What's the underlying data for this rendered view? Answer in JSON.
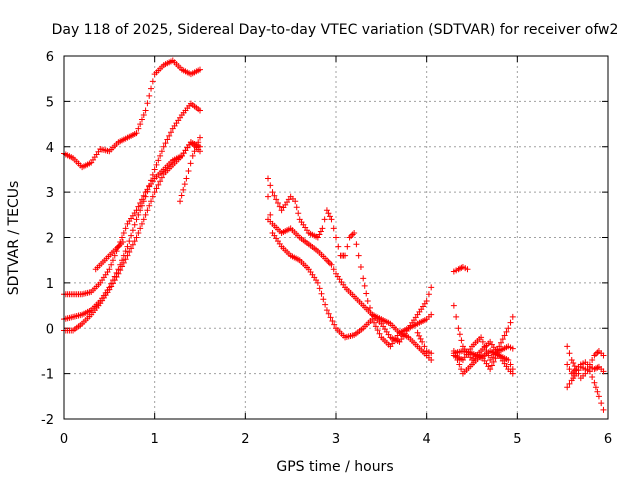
{
  "chart_data": {
    "type": "scatter",
    "title": "Day 118 of 2025, Sidereal Day-to-day VTEC variation (SDTVAR) for receiver ofw2",
    "xlabel": "GPS time / hours",
    "ylabel": "SDTVAR / TECUs",
    "xlim": [
      0,
      6
    ],
    "ylim": [
      -2,
      6
    ],
    "x_ticks": [
      "0",
      "1",
      "2",
      "3",
      "4",
      "5",
      "6"
    ],
    "y_ticks": [
      "-2",
      "-1",
      "0",
      "1",
      "2",
      "3",
      "4",
      "5",
      "6"
    ],
    "grid": true,
    "marker": "plus",
    "color": "#ff0000",
    "series": [
      {
        "segments": [
          [
            [
              0.0,
              3.85
            ],
            [
              0.1,
              3.75
            ],
            [
              0.2,
              3.55
            ],
            [
              0.3,
              3.65
            ],
            [
              0.4,
              3.95
            ],
            [
              0.5,
              3.9
            ],
            [
              0.6,
              4.1
            ],
            [
              0.7,
              4.2
            ],
            [
              0.8,
              4.3
            ],
            [
              0.9,
              4.8
            ],
            [
              1.0,
              5.6
            ],
            [
              1.1,
              5.8
            ],
            [
              1.2,
              5.9
            ],
            [
              1.3,
              5.7
            ],
            [
              1.4,
              5.6
            ],
            [
              1.5,
              5.7
            ]
          ]
        ]
      },
      {
        "segments": [
          [
            [
              0.0,
              0.2
            ],
            [
              0.2,
              0.3
            ],
            [
              0.3,
              0.4
            ],
            [
              0.4,
              0.6
            ],
            [
              0.5,
              0.9
            ],
            [
              0.6,
              1.3
            ],
            [
              0.7,
              1.8
            ],
            [
              0.8,
              2.4
            ],
            [
              0.9,
              2.9
            ],
            [
              1.0,
              3.5
            ],
            [
              1.1,
              4.0
            ],
            [
              1.2,
              4.4
            ],
            [
              1.3,
              4.7
            ],
            [
              1.4,
              4.95
            ],
            [
              1.5,
              4.8
            ]
          ]
        ]
      },
      {
        "segments": [
          [
            [
              0.0,
              0.75
            ],
            [
              0.2,
              0.75
            ],
            [
              0.3,
              0.8
            ],
            [
              0.4,
              1.0
            ],
            [
              0.5,
              1.3
            ],
            [
              0.6,
              1.8
            ],
            [
              0.7,
              2.3
            ],
            [
              0.8,
              2.6
            ],
            [
              0.9,
              3.0
            ],
            [
              1.0,
              3.3
            ],
            [
              1.1,
              3.5
            ],
            [
              1.2,
              3.7
            ],
            [
              1.3,
              3.8
            ],
            [
              1.4,
              4.1
            ],
            [
              1.5,
              4.0
            ]
          ],
          [
            [
              0.35,
              1.3
            ],
            [
              0.45,
              1.5
            ],
            [
              0.55,
              1.7
            ],
            [
              0.65,
              1.9
            ]
          ],
          [
            [
              1.28,
              2.8
            ],
            [
              1.35,
              3.3
            ],
            [
              1.42,
              3.8
            ],
            [
              1.5,
              4.2
            ]
          ]
        ]
      },
      {
        "segments": [
          [
            [
              0.0,
              -0.05
            ],
            [
              0.1,
              -0.05
            ],
            [
              0.2,
              0.1
            ],
            [
              0.3,
              0.3
            ],
            [
              0.4,
              0.55
            ],
            [
              0.5,
              0.85
            ],
            [
              0.6,
              1.2
            ],
            [
              0.7,
              1.6
            ],
            [
              0.8,
              2.0
            ],
            [
              0.9,
              2.5
            ],
            [
              1.0,
              3.0
            ],
            [
              1.1,
              3.4
            ],
            [
              1.2,
              3.6
            ],
            [
              1.3,
              3.8
            ],
            [
              1.4,
              4.1
            ],
            [
              1.5,
              3.9
            ]
          ]
        ]
      },
      {
        "segments": [
          [
            [
              2.25,
              3.3
            ],
            [
              2.3,
              3.0
            ],
            [
              2.4,
              2.6
            ],
            [
              2.5,
              2.9
            ],
            [
              2.55,
              2.8
            ],
            [
              2.6,
              2.4
            ],
            [
              2.7,
              2.1
            ],
            [
              2.8,
              2.0
            ],
            [
              2.85,
              2.2
            ],
            [
              2.9,
              2.6
            ],
            [
              2.95,
              2.4
            ],
            [
              3.0,
              2.0
            ],
            [
              3.05,
              1.6
            ],
            [
              3.1,
              1.6
            ],
            [
              3.15,
              2.0
            ],
            [
              3.2,
              2.1
            ],
            [
              3.25,
              1.6
            ],
            [
              3.3,
              1.1
            ],
            [
              3.35,
              0.6
            ],
            [
              3.4,
              0.3
            ],
            [
              3.5,
              0.2
            ],
            [
              3.6,
              0.1
            ],
            [
              3.7,
              -0.1
            ],
            [
              3.8,
              0.0
            ],
            [
              3.9,
              0.3
            ],
            [
              4.0,
              0.6
            ],
            [
              4.05,
              0.9
            ]
          ],
          [
            [
              2.25,
              2.4
            ],
            [
              2.3,
              2.3
            ],
            [
              2.4,
              2.1
            ],
            [
              2.5,
              2.2
            ],
            [
              2.6,
              2.0
            ],
            [
              2.7,
              1.85
            ],
            [
              2.8,
              1.7
            ],
            [
              2.9,
              1.5
            ],
            [
              2.95,
              1.4
            ],
            [
              3.0,
              1.2
            ],
            [
              3.1,
              0.9
            ],
            [
              3.2,
              0.7
            ],
            [
              3.3,
              0.5
            ],
            [
              3.4,
              0.3
            ],
            [
              3.5,
              0.1
            ],
            [
              3.6,
              -0.2
            ],
            [
              3.7,
              -0.3
            ],
            [
              3.8,
              0.0
            ],
            [
              3.9,
              0.1
            ],
            [
              4.0,
              0.2
            ],
            [
              4.05,
              0.3
            ]
          ],
          [
            [
              2.25,
              2.9
            ],
            [
              2.3,
              2.1
            ],
            [
              2.4,
              1.8
            ],
            [
              2.5,
              1.6
            ],
            [
              2.6,
              1.5
            ],
            [
              2.7,
              1.3
            ],
            [
              2.8,
              1.0
            ],
            [
              2.9,
              0.4
            ],
            [
              3.0,
              0.0
            ],
            [
              3.1,
              -0.2
            ],
            [
              3.2,
              -0.15
            ],
            [
              3.3,
              0.0
            ],
            [
              3.4,
              0.2
            ],
            [
              3.5,
              -0.2
            ],
            [
              3.6,
              -0.4
            ],
            [
              3.7,
              -0.1
            ],
            [
              3.8,
              -0.2
            ],
            [
              3.9,
              -0.4
            ],
            [
              4.0,
              -0.6
            ],
            [
              4.05,
              -0.7
            ]
          ],
          [
            [
              3.9,
              -0.1
            ],
            [
              3.95,
              -0.3
            ],
            [
              4.0,
              -0.5
            ],
            [
              4.05,
              -0.55
            ]
          ]
        ]
      },
      {
        "segments": [
          [
            [
              4.3,
              1.25
            ],
            [
              4.35,
              1.3
            ],
            [
              4.4,
              1.35
            ],
            [
              4.45,
              1.3
            ]
          ],
          [
            [
              4.3,
              0.5
            ],
            [
              4.35,
              0.0
            ],
            [
              4.4,
              -0.4
            ],
            [
              4.5,
              -0.7
            ],
            [
              4.6,
              -0.5
            ],
            [
              4.7,
              -0.3
            ],
            [
              4.8,
              -0.6
            ],
            [
              4.9,
              -0.9
            ],
            [
              4.95,
              -1.0
            ]
          ],
          [
            [
              4.3,
              -0.6
            ],
            [
              4.4,
              -0.7
            ],
            [
              4.5,
              -0.4
            ],
            [
              4.6,
              -0.2
            ],
            [
              4.7,
              -0.7
            ],
            [
              4.8,
              -0.4
            ],
            [
              4.9,
              0.0
            ],
            [
              4.95,
              0.25
            ]
          ],
          [
            [
              4.3,
              -0.5
            ],
            [
              4.4,
              -1.0
            ],
            [
              4.5,
              -0.8
            ],
            [
              4.6,
              -0.6
            ],
            [
              4.7,
              -0.9
            ],
            [
              4.8,
              -0.5
            ],
            [
              4.9,
              -0.4
            ],
            [
              4.95,
              -0.45
            ]
          ],
          [
            [
              4.3,
              -0.55
            ],
            [
              4.4,
              -0.5
            ],
            [
              4.5,
              -0.55
            ],
            [
              4.6,
              -0.65
            ],
            [
              4.7,
              -0.5
            ],
            [
              4.8,
              -0.6
            ],
            [
              4.9,
              -0.7
            ],
            [
              4.95,
              -0.9
            ]
          ]
        ]
      },
      {
        "segments": [
          [
            [
              5.55,
              -0.4
            ],
            [
              5.6,
              -0.7
            ],
            [
              5.65,
              -0.9
            ],
            [
              5.7,
              -1.1
            ],
            [
              5.75,
              -1.0
            ],
            [
              5.8,
              -0.8
            ],
            [
              5.85,
              -0.6
            ],
            [
              5.9,
              -0.5
            ],
            [
              5.95,
              -0.6
            ]
          ],
          [
            [
              5.55,
              -1.3
            ],
            [
              5.6,
              -1.15
            ],
            [
              5.65,
              -1.0
            ],
            [
              5.7,
              -0.85
            ],
            [
              5.75,
              -0.9
            ],
            [
              5.8,
              -0.95
            ],
            [
              5.85,
              -1.2
            ],
            [
              5.9,
              -1.5
            ],
            [
              5.95,
              -1.8
            ]
          ],
          [
            [
              5.55,
              -0.8
            ],
            [
              5.6,
              -1.0
            ],
            [
              5.65,
              -0.9
            ],
            [
              5.7,
              -0.8
            ],
            [
              5.75,
              -0.75
            ],
            [
              5.8,
              -0.85
            ],
            [
              5.85,
              -0.9
            ],
            [
              5.9,
              -0.85
            ],
            [
              5.95,
              -0.95
            ]
          ]
        ]
      }
    ]
  }
}
